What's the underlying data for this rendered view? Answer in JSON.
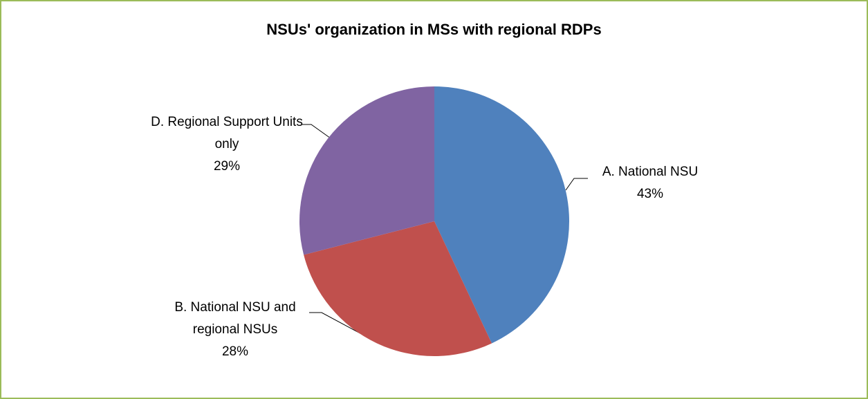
{
  "chart_data": {
    "type": "pie",
    "title": "NSUs' organization in MSs with regional RDPs",
    "categories": [
      "A. National NSU",
      "B. National NSU and regional NSUs",
      "D. Regional Support Units only"
    ],
    "values": [
      43,
      28,
      29
    ],
    "value_labels": [
      "43%",
      "28%",
      "29%"
    ],
    "colors": [
      "#4f81bd",
      "#c0504d",
      "#8064a2"
    ]
  }
}
